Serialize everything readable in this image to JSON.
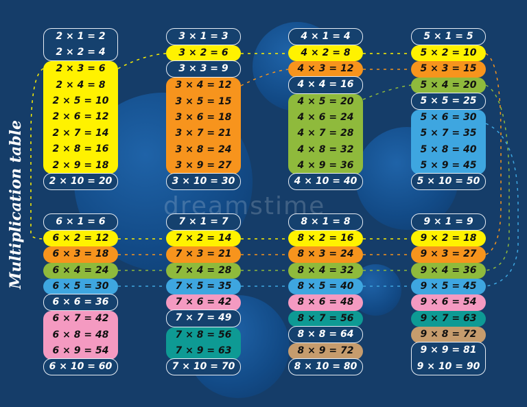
{
  "title": "Multiplication table",
  "watermark": "dreamstime",
  "colors": {
    "background": "#153d69",
    "dark": "#15416e",
    "yellow": "#fff200",
    "orange": "#f7941d",
    "green": "#8fba3c",
    "blue": "#3ea6e0",
    "pink": "#f49ac1",
    "teal": "#0e9a94",
    "tan": "#c69c6d"
  },
  "tables": [
    {
      "n": 2,
      "rows": [
        "2 × 1 = 2",
        "2 × 2 = 4",
        "2 × 3 = 6",
        "2 × 4 = 8",
        "2 × 5 = 10",
        "2 × 6 = 12",
        "2 × 7 = 14",
        "2 × 8 = 16",
        "2 × 9 = 18",
        "2 × 10 = 20"
      ],
      "colors": [
        "dark",
        "dark",
        "yellow",
        "yellow",
        "yellow",
        "yellow",
        "yellow",
        "yellow",
        "yellow",
        "dark2"
      ]
    },
    {
      "n": 3,
      "rows": [
        "3 × 1 = 3",
        "3 × 2 = 6",
        "3 × 3 = 9",
        "3 × 4 = 12",
        "3 × 5 = 15",
        "3 × 6 = 18",
        "3 × 7 = 21",
        "3 × 8 = 24",
        "3 × 9 = 27",
        "3 × 10 = 30"
      ],
      "colors": [
        "dark",
        "yellow",
        "dark2",
        "orange",
        "orange",
        "orange",
        "orange",
        "orange",
        "orange",
        "dark"
      ]
    },
    {
      "n": 4,
      "rows": [
        "4 × 1 = 4",
        "4 × 2 = 8",
        "4 × 3 = 12",
        "4 × 4 = 16",
        "4 × 5 = 20",
        "4 × 6 = 24",
        "4 × 7 = 28",
        "4 × 8 = 32",
        "4 × 9 = 36",
        "4 × 10 = 40"
      ],
      "colors": [
        "dark",
        "yellow",
        "orange",
        "dark2",
        "green",
        "green",
        "green",
        "green",
        "green",
        "dark"
      ]
    },
    {
      "n": 5,
      "rows": [
        "5 × 1 = 5",
        "5 × 2 = 10",
        "5 × 3 = 15",
        "5 × 4 = 20",
        "5 × 5 = 25",
        "5 × 6 = 30",
        "5 × 7 = 35",
        "5 × 8 = 40",
        "5 × 9 = 45",
        "5 × 10 = 50"
      ],
      "colors": [
        "dark",
        "yellow",
        "orange",
        "green",
        "dark2",
        "blue",
        "blue",
        "blue",
        "blue",
        "dark"
      ]
    },
    {
      "n": 6,
      "rows": [
        "6 × 1 = 6",
        "6 × 2 = 12",
        "6 × 3 = 18",
        "6 × 4 = 24",
        "6 × 5 = 30",
        "6 × 6 = 36",
        "6 × 7 = 42",
        "6 × 8 = 48",
        "6 × 9 = 54",
        "6 × 10 = 60"
      ],
      "colors": [
        "dark",
        "yellow",
        "orange",
        "green",
        "blue",
        "dark2",
        "pink",
        "pink",
        "pink",
        "dark"
      ]
    },
    {
      "n": 7,
      "rows": [
        "7 × 1 = 7",
        "7 × 2 = 14",
        "7 × 3 = 21",
        "7 × 4 = 28",
        "7 × 5 = 35",
        "7 × 6 = 42",
        "7 × 7 = 49",
        "7 × 8 = 56",
        "7 × 9 = 63",
        "7 × 10 = 70"
      ],
      "colors": [
        "dark",
        "yellow",
        "orange",
        "green",
        "blue",
        "pink",
        "dark2",
        "teal",
        "teal",
        "dark"
      ]
    },
    {
      "n": 8,
      "rows": [
        "8 × 1 = 8",
        "8 × 2 = 16",
        "8 × 3 = 24",
        "8 × 4 = 32",
        "8 × 5 = 40",
        "8 × 6 = 48",
        "8 × 7 = 56",
        "8 × 8 = 64",
        "8 × 9 = 72",
        "8 × 10 = 80"
      ],
      "colors": [
        "dark",
        "yellow",
        "orange",
        "green",
        "blue",
        "pink",
        "teal",
        "dark2",
        "tan",
        "dark"
      ]
    },
    {
      "n": 9,
      "rows": [
        "9 × 1 = 9",
        "9 × 2 = 18",
        "9 × 3 = 27",
        "9 × 4 = 36",
        "9 × 5 = 45",
        "9 × 6 = 54",
        "9 × 7 = 63",
        "9 × 8 = 72",
        "9 × 9 = 81",
        "9 × 10 = 90"
      ],
      "colors": [
        "dark",
        "yellow",
        "orange",
        "green",
        "blue",
        "pink",
        "teal",
        "tan",
        "dark2",
        "dark2"
      ]
    }
  ]
}
